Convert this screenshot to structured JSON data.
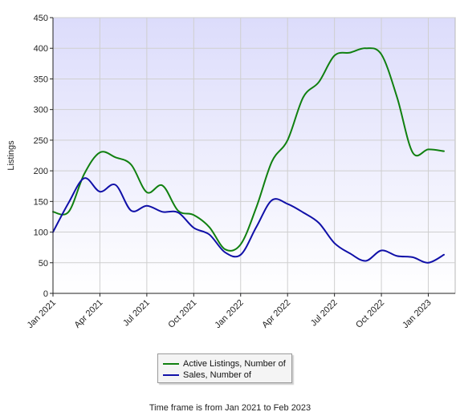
{
  "chart_data": {
    "type": "line",
    "ylabel": "Listings",
    "xlabel": "",
    "ylim": [
      0,
      450
    ],
    "yticks": [
      0,
      50,
      100,
      150,
      200,
      250,
      300,
      350,
      400,
      450
    ],
    "x_tick_labels": [
      "Jan 2021",
      "Apr 2021",
      "Jul 2021",
      "Oct 2021",
      "Jan 2022",
      "Apr 2022",
      "Jul 2022",
      "Oct 2022",
      "Jan 2023"
    ],
    "categories": [
      "Jan 2021",
      "Feb 2021",
      "Mar 2021",
      "Apr 2021",
      "May 2021",
      "Jun 2021",
      "Jul 2021",
      "Aug 2021",
      "Sep 2021",
      "Oct 2021",
      "Nov 2021",
      "Dec 2021",
      "Jan 2022",
      "Feb 2022",
      "Mar 2022",
      "Apr 2022",
      "May 2022",
      "Jun 2022",
      "Jul 2022",
      "Aug 2022",
      "Sep 2022",
      "Oct 2022",
      "Nov 2022",
      "Dec 2022",
      "Jan 2023",
      "Feb 2023"
    ],
    "grid": true,
    "legend_position": "bottom",
    "series": [
      {
        "name": "Active Listings, Number of",
        "color": "#108010",
        "values": [
          133,
          133,
          195,
          230,
          222,
          210,
          165,
          176,
          135,
          128,
          108,
          72,
          80,
          140,
          215,
          250,
          320,
          345,
          388,
          393,
          400,
          390,
          320,
          230,
          235,
          232
        ]
      },
      {
        "name": "Sales, Number of",
        "color": "#1010a8",
        "values": [
          100,
          148,
          188,
          166,
          177,
          135,
          143,
          133,
          132,
          107,
          96,
          67,
          63,
          108,
          152,
          146,
          132,
          115,
          82,
          65,
          53,
          70,
          61,
          59,
          50,
          63
        ]
      }
    ]
  },
  "footer": {
    "note": "Time frame is from Jan 2021 to Feb 2023"
  }
}
